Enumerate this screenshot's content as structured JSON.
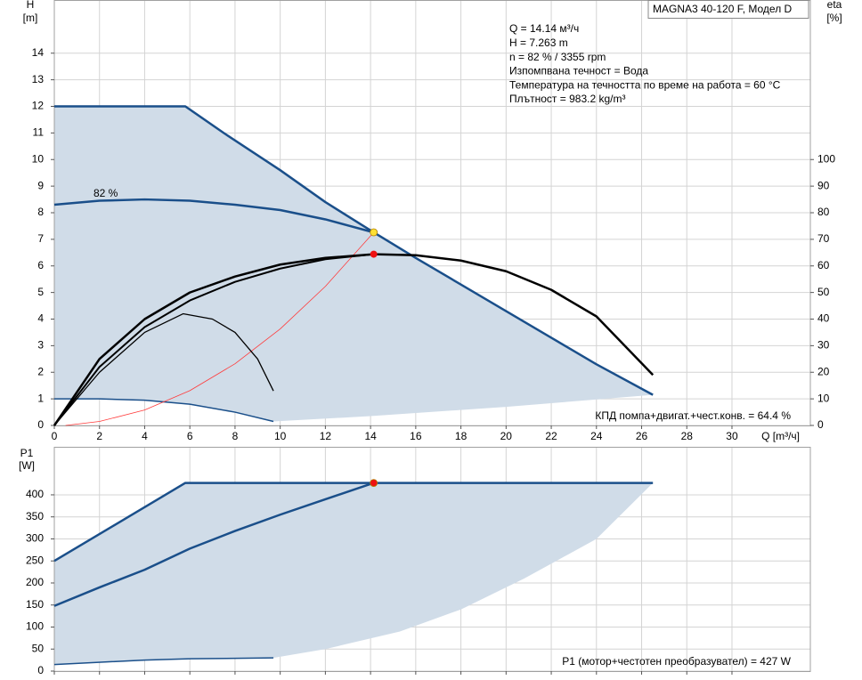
{
  "header": {
    "title": "MAGNA3 40-120 F, Модел D",
    "info": [
      "Q = 14.14 м³/ч",
      "H = 7.263 m",
      "n = 82 % / 3355 rpm",
      "Изпомпвана течност = Вода",
      "Температура на течността по време на работа = 60 °C",
      "Плътност = 983.2 kg/m³"
    ]
  },
  "chart_data": [
    {
      "type": "line",
      "y_label": "H",
      "y_unit": "[m]",
      "y2_label": "eta",
      "y2_unit": "[%]",
      "x_label": "Q [m³/ч]",
      "xlim": [
        0,
        33.47
      ],
      "ylim": [
        0,
        16
      ],
      "y2lim": [
        0,
        160
      ],
      "xticks": [
        0,
        2,
        4,
        6,
        8,
        10,
        12,
        14,
        16,
        18,
        20,
        22,
        24,
        26,
        28,
        30
      ],
      "yticks": [
        0,
        1,
        2,
        3,
        4,
        5,
        6,
        7,
        8,
        9,
        10,
        11,
        12,
        13,
        14
      ],
      "y2ticks": [
        0,
        10,
        20,
        30,
        40,
        50,
        60,
        70,
        80,
        90,
        100
      ],
      "grid": true,
      "xtick_labels": true,
      "annotation": "КПД помпа+двигат.+чест.конв. = 64.4  %",
      "area": {
        "color": "#d0dce8",
        "x": [
          0,
          0,
          5.8,
          7.5,
          10,
          12,
          14.14,
          16,
          18,
          20,
          22,
          24,
          26.5,
          20,
          14,
          9.7,
          8,
          6,
          4,
          2,
          0
        ],
        "values": [
          1,
          12,
          12,
          11,
          9.6,
          8.4,
          7.26,
          6.3,
          5.3,
          4.3,
          3.3,
          2.3,
          1.15,
          0.7,
          0.35,
          0.15,
          0.5,
          0.8,
          0.95,
          1,
          1
        ]
      },
      "series": [
        {
          "color": "#1a4f8a",
          "width": 2.5,
          "x": [
            0,
            5.8,
            7.5,
            10,
            12,
            14.14,
            16,
            18,
            20,
            22,
            24,
            26.5
          ],
          "values": [
            12,
            12,
            11,
            9.6,
            8.4,
            7.26,
            6.3,
            5.3,
            4.3,
            3.3,
            2.3,
            1.15
          ]
        },
        {
          "color": "#1a4f8a",
          "width": 2.5,
          "label": "82 %",
          "x": [
            0,
            2,
            4,
            6,
            8,
            10,
            12,
            14.14
          ],
          "values": [
            8.3,
            8.45,
            8.5,
            8.45,
            8.3,
            8.1,
            7.75,
            7.26
          ]
        },
        {
          "color": "#1a4f8a",
          "width": 1.5,
          "x": [
            0,
            2,
            4,
            6,
            8,
            9.7
          ],
          "values": [
            1,
            1,
            0.95,
            0.8,
            0.5,
            0.15
          ]
        },
        {
          "color": "#ff3b3b",
          "width": 0.8,
          "x": [
            0.5,
            2,
            4,
            6,
            8,
            10,
            12,
            14.14
          ],
          "values": [
            0,
            0.15,
            0.58,
            1.31,
            2.32,
            3.63,
            5.23,
            7.26
          ]
        },
        {
          "color": "#000000",
          "width": 2.5,
          "axis": "y2",
          "x": [
            0,
            2,
            4,
            6,
            8,
            10,
            12,
            14.14,
            16,
            18,
            20,
            22,
            24,
            26.5
          ],
          "values": [
            0,
            25,
            40,
            50,
            56,
            60.5,
            63,
            64.4,
            64,
            62,
            58,
            51,
            41,
            19
          ]
        },
        {
          "color": "#000000",
          "width": 2,
          "axis": "y2",
          "x": [
            0,
            2,
            4,
            6,
            8,
            10,
            12,
            14.14
          ],
          "values": [
            0,
            22,
            37,
            47,
            54,
            59,
            62.5,
            64.4
          ]
        },
        {
          "color": "#000000",
          "width": 1.3,
          "axis": "y2",
          "x": [
            0,
            2,
            4,
            5.7,
            7,
            8,
            9,
            9.7
          ],
          "values": [
            0,
            20,
            35,
            42,
            40,
            35,
            25,
            13
          ]
        }
      ],
      "points": [
        {
          "color": "#ffe033",
          "x": 14.14,
          "value": 7.263
        },
        {
          "color": "#ee1111",
          "axis": "y2",
          "x": 14.14,
          "value": 64.4
        }
      ]
    },
    {
      "type": "line",
      "y_label": "P1",
      "y_unit": "[W]",
      "xlim": [
        0,
        33.47
      ],
      "ylim": [
        0,
        509
      ],
      "xticks": [
        0,
        2,
        4,
        6,
        8,
        10,
        12,
        14,
        16,
        18,
        20,
        22,
        24,
        26,
        28,
        30
      ],
      "yticks": [
        0,
        50,
        100,
        150,
        200,
        250,
        300,
        350,
        400
      ],
      "grid": true,
      "xtick_labels": false,
      "annotation": "P1 (мотор+честотен преобразувател) = 427 W",
      "area": {
        "color": "#d0dce8",
        "x": [
          0,
          0,
          5.8,
          26.5,
          24,
          20.8,
          18,
          15.3,
          12,
          9.7,
          6,
          4,
          0
        ],
        "values": [
          15,
          250,
          427,
          427,
          300,
          210,
          140,
          90,
          50,
          30,
          28,
          25,
          15
        ]
      },
      "series": [
        {
          "color": "#1a4f8a",
          "width": 2.5,
          "x": [
            0,
            5.8,
            26.5
          ],
          "values": [
            250,
            427,
            427
          ]
        },
        {
          "color": "#1a4f8a",
          "width": 2.5,
          "x": [
            0,
            2,
            4,
            6,
            8,
            10,
            12,
            14.14
          ],
          "values": [
            148,
            190,
            230,
            278,
            318,
            355,
            390,
            427
          ]
        },
        {
          "color": "#1a4f8a",
          "width": 1.5,
          "x": [
            0,
            4,
            6,
            9.7
          ],
          "values": [
            15,
            25,
            28,
            30
          ]
        }
      ],
      "points": [
        {
          "color": "#ee1111",
          "x": 14.14,
          "value": 427
        }
      ]
    }
  ]
}
